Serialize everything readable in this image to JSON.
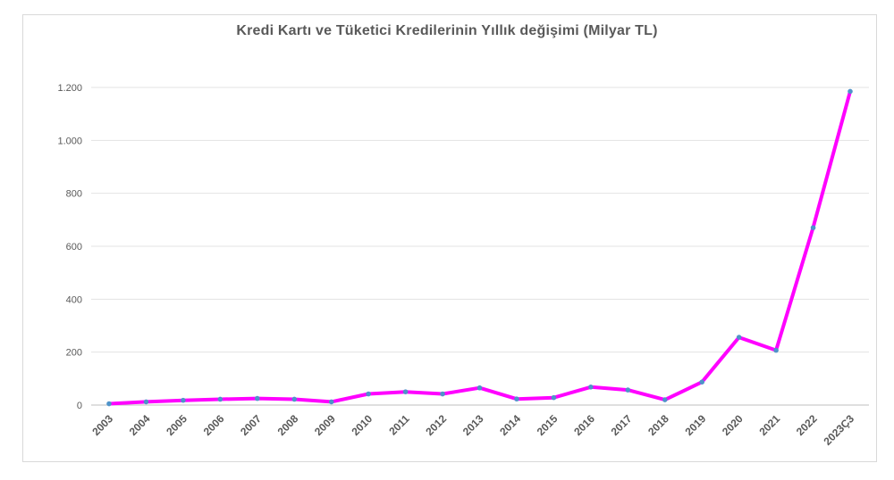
{
  "chart_data": {
    "type": "line",
    "title": "Kredi Kartı ve Tüketici Kredilerinin Yıllık değişimi (Milyar TL)",
    "xlabel": "",
    "ylabel": "",
    "categories": [
      "2003",
      "2004",
      "2005",
      "2006",
      "2007",
      "2008",
      "2009",
      "2010",
      "2011",
      "2012",
      "2013",
      "2014",
      "2015",
      "2016",
      "2017",
      "2018",
      "2019",
      "2020",
      "2021",
      "2022",
      "2023Ç3"
    ],
    "series": [
      {
        "values": [
          5,
          12,
          18,
          22,
          25,
          22,
          12,
          42,
          50,
          42,
          65,
          23,
          28,
          68,
          57,
          20,
          87,
          256,
          207,
          670,
          1185
        ]
      }
    ],
    "ylim": [
      0,
      1200
    ],
    "yticks": [
      0,
      200,
      400,
      600,
      800,
      1000,
      1200
    ],
    "ytick_labels": [
      "0",
      "200",
      "400",
      "600",
      "800",
      "1.000",
      "1.200"
    ],
    "grid": true,
    "legend": "none",
    "line_color": "#ff00ff",
    "marker_color": "#4f93c9",
    "grid_color": "#e3e3e3"
  }
}
